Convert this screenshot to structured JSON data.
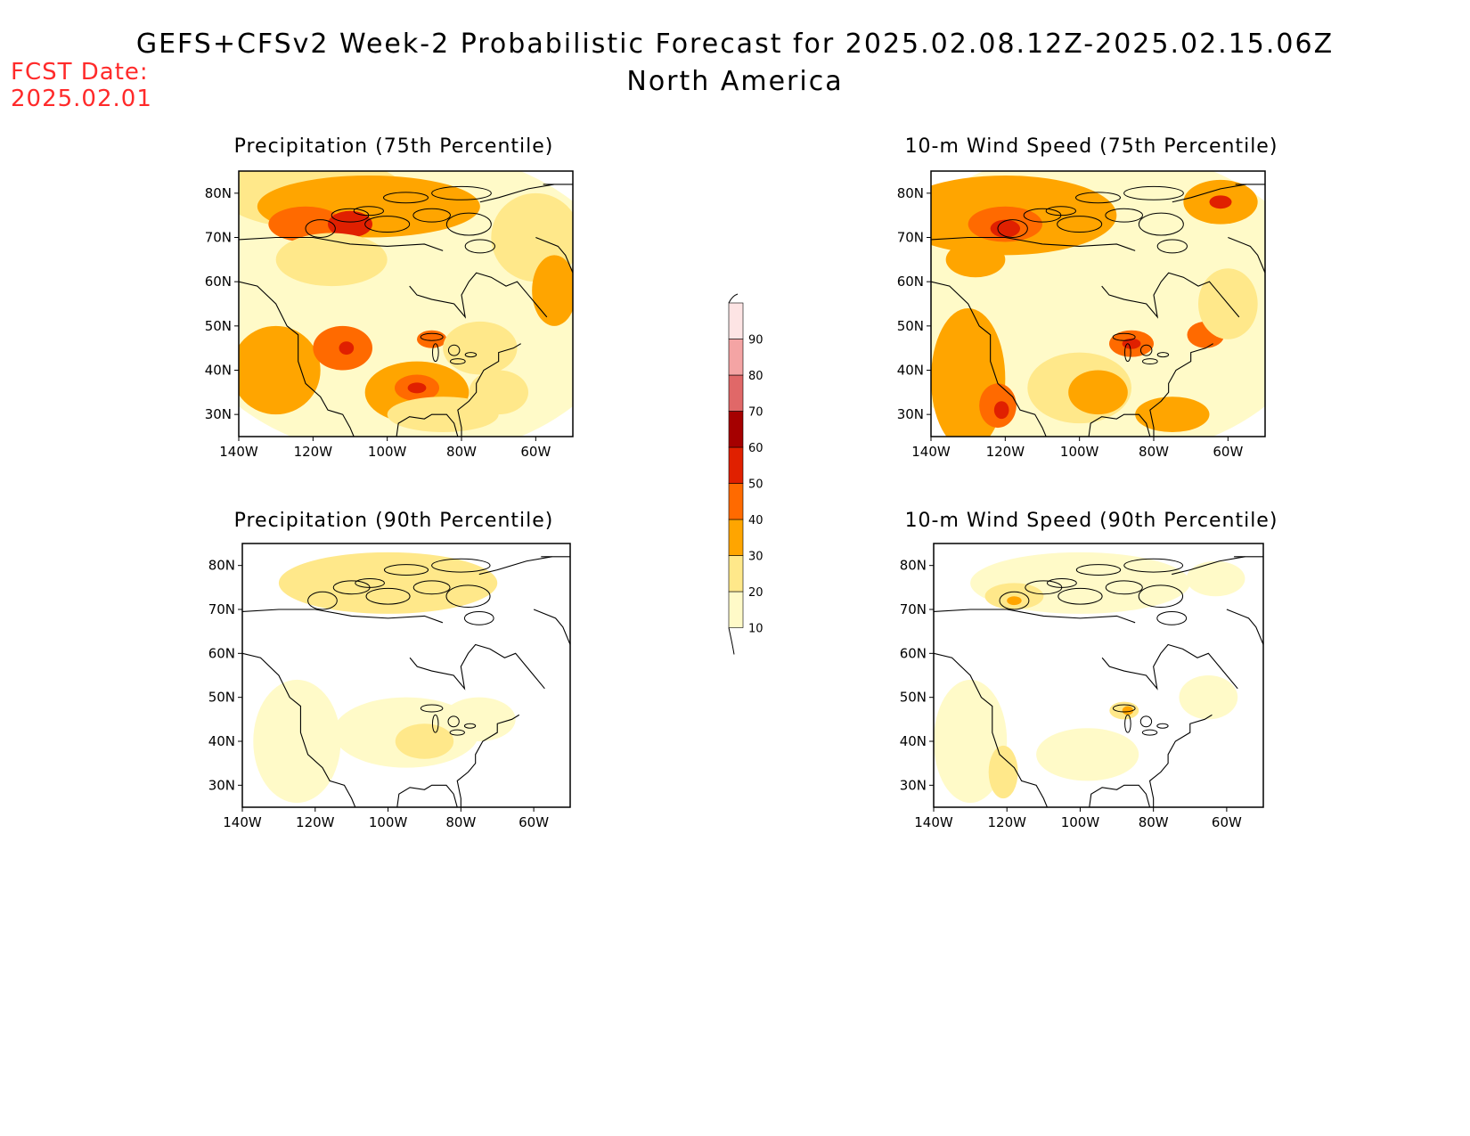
{
  "header": {
    "title_line1": "GEFS+CFSv2 Week-2 Probabilistic Forecast for 2025.02.08.12Z-2025.02.15.06Z",
    "title_line2": "North America",
    "fcst_label": "FCST Date:",
    "fcst_date": "2025.02.01"
  },
  "panels": [
    {
      "title": "Precipitation (75th Percentile)",
      "field": "precip75"
    },
    {
      "title": "10-m Wind Speed (75th Percentile)",
      "field": "wind75"
    },
    {
      "title": "Precipitation (90th Percentile)",
      "field": "precip90"
    },
    {
      "title": "10-m Wind Speed (90th Percentile)",
      "field": "wind90"
    }
  ],
  "axes": {
    "lon_ticks": [
      "140W",
      "120W",
      "100W",
      "80W",
      "60W"
    ],
    "lat_ticks": [
      "80N",
      "70N",
      "60N",
      "50N",
      "40N",
      "30N"
    ]
  },
  "colorbar": {
    "levels": [
      "10",
      "20",
      "30",
      "40",
      "50",
      "60",
      "70",
      "80",
      "90"
    ],
    "colors": [
      "#fffac8",
      "#ffe88a",
      "#ffa500",
      "#ff6a00",
      "#e02000",
      "#a50000",
      "#e06868",
      "#f4a4a4",
      "#fde4e4"
    ]
  }
}
